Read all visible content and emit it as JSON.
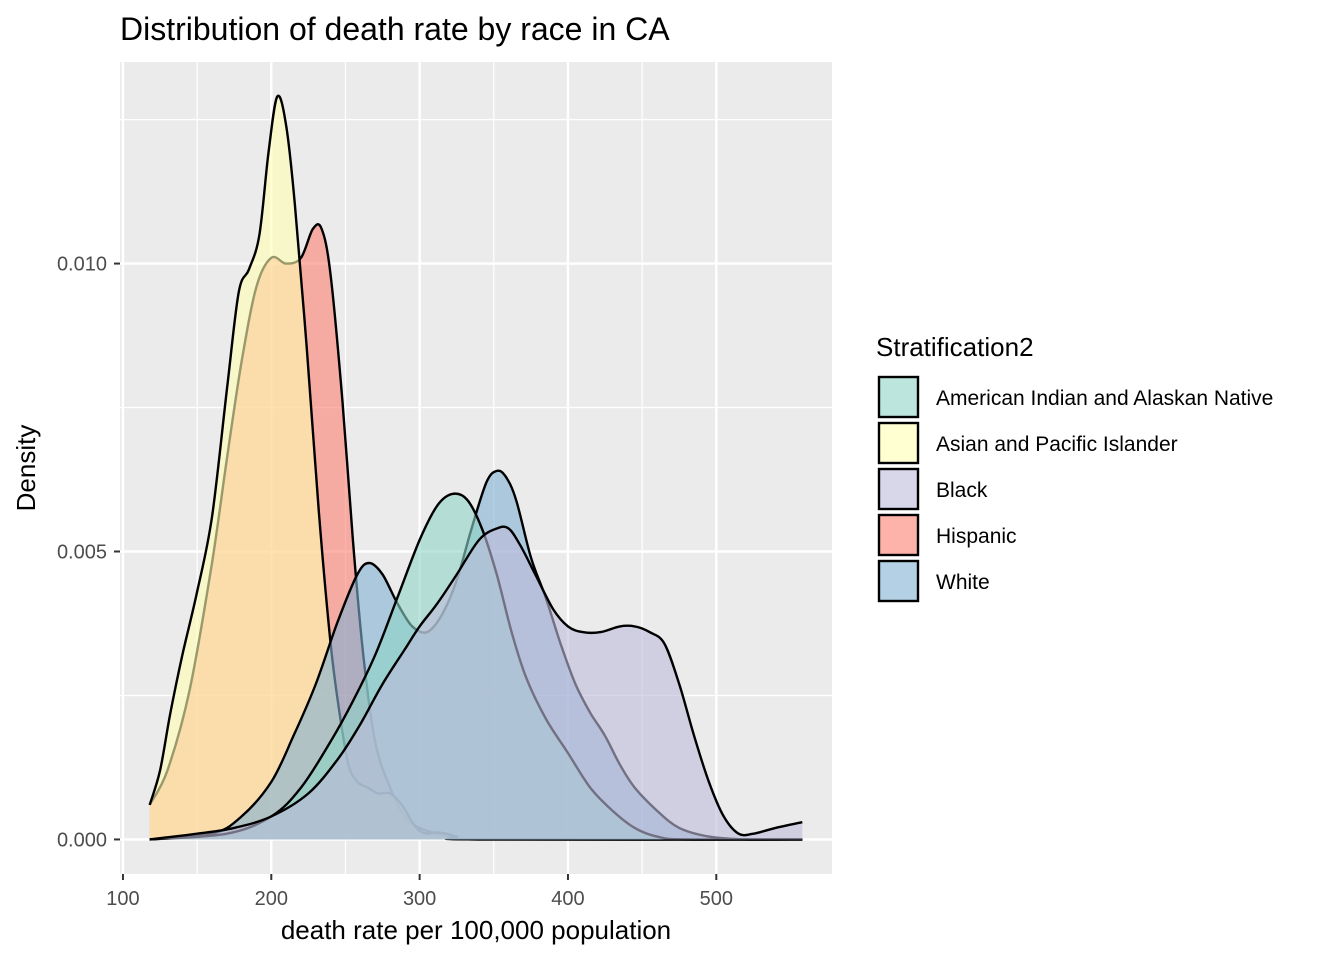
{
  "chart_data": {
    "type": "area",
    "subtype": "density",
    "title": "Distribution of death rate by race in CA",
    "xlabel": "death rate per 100,000 population",
    "ylabel": "Density",
    "xlim": [
      98,
      578
    ],
    "ylim": [
      -0.0006,
      0.0135
    ],
    "xticks": [
      100,
      200,
      300,
      400,
      500
    ],
    "xtick_labels": [
      "100",
      "200",
      "300",
      "400",
      "500"
    ],
    "yticks": [
      0.0,
      0.005,
      0.01
    ],
    "ytick_labels": [
      "0.000",
      "0.005",
      "0.010"
    ],
    "grid": true,
    "legend": {
      "title": "Stratification2",
      "position": "right"
    },
    "series": [
      {
        "name": "Hispanic",
        "color": "#FB8072",
        "points": [
          [
            118,
            0.0006
          ],
          [
            130,
            0.0012
          ],
          [
            145,
            0.0026
          ],
          [
            160,
            0.0048
          ],
          [
            170,
            0.0066
          ],
          [
            180,
            0.0083
          ],
          [
            190,
            0.0096
          ],
          [
            200,
            0.0101
          ],
          [
            210,
            0.01
          ],
          [
            220,
            0.0101
          ],
          [
            228,
            0.0106
          ],
          [
            234,
            0.0106
          ],
          [
            240,
            0.0098
          ],
          [
            248,
            0.0076
          ],
          [
            255,
            0.0052
          ],
          [
            262,
            0.0032
          ],
          [
            270,
            0.0017
          ],
          [
            280,
            0.0009
          ],
          [
            290,
            0.0004
          ],
          [
            300,
            0.0002
          ],
          [
            320,
            5e-05
          ],
          [
            340,
            0.0
          ],
          [
            558,
            0.0
          ]
        ]
      },
      {
        "name": "Asian and Pacific Islander",
        "color": "#FFFFB3",
        "points": [
          [
            118,
            0.0006
          ],
          [
            125,
            0.0012
          ],
          [
            132,
            0.0022
          ],
          [
            140,
            0.0032
          ],
          [
            150,
            0.0043
          ],
          [
            160,
            0.0056
          ],
          [
            170,
            0.0078
          ],
          [
            178,
            0.0095
          ],
          [
            185,
            0.0099
          ],
          [
            192,
            0.0105
          ],
          [
            198,
            0.0119
          ],
          [
            204,
            0.0129
          ],
          [
            210,
            0.0124
          ],
          [
            216,
            0.011
          ],
          [
            224,
            0.0085
          ],
          [
            232,
            0.0057
          ],
          [
            240,
            0.0034
          ],
          [
            246,
            0.0022
          ],
          [
            252,
            0.0013
          ],
          [
            258,
            0.001
          ],
          [
            265,
            0.0009
          ],
          [
            272,
            0.0008
          ],
          [
            280,
            0.0008
          ],
          [
            288,
            0.0006
          ],
          [
            295,
            0.0003
          ],
          [
            300,
            0.00015
          ],
          [
            305,
            0.0001
          ],
          [
            310,
            0.00012
          ],
          [
            318,
            0.0001
          ],
          [
            325,
            5e-05
          ],
          [
            340,
            0.0
          ],
          [
            558,
            0.0
          ]
        ]
      },
      {
        "name": "White",
        "color": "#80B1D3",
        "points": [
          [
            118,
            0.0
          ],
          [
            160,
            0.0001
          ],
          [
            180,
            0.0004
          ],
          [
            200,
            0.001
          ],
          [
            215,
            0.0018
          ],
          [
            230,
            0.0027
          ],
          [
            245,
            0.0038
          ],
          [
            258,
            0.0046
          ],
          [
            266,
            0.0048
          ],
          [
            275,
            0.0046
          ],
          [
            285,
            0.0041
          ],
          [
            295,
            0.0037
          ],
          [
            305,
            0.0036
          ],
          [
            315,
            0.0039
          ],
          [
            325,
            0.0045
          ],
          [
            335,
            0.0054
          ],
          [
            345,
            0.0062
          ],
          [
            352,
            0.0064
          ],
          [
            358,
            0.0063
          ],
          [
            365,
            0.0059
          ],
          [
            375,
            0.0049
          ],
          [
            385,
            0.0042
          ],
          [
            395,
            0.0034
          ],
          [
            405,
            0.0027
          ],
          [
            415,
            0.0022
          ],
          [
            425,
            0.0018
          ],
          [
            435,
            0.0013
          ],
          [
            445,
            0.0009
          ],
          [
            460,
            0.0005
          ],
          [
            475,
            0.0002
          ],
          [
            495,
            5e-05
          ],
          [
            520,
            0.0
          ],
          [
            558,
            0.0
          ]
        ]
      },
      {
        "name": "American Indian and Alaskan Native",
        "color": "#8DD3C7",
        "points": [
          [
            118,
            0.0
          ],
          [
            170,
            0.0001
          ],
          [
            200,
            0.0004
          ],
          [
            220,
            0.0009
          ],
          [
            240,
            0.0017
          ],
          [
            255,
            0.0024
          ],
          [
            270,
            0.0032
          ],
          [
            285,
            0.0042
          ],
          [
            300,
            0.0052
          ],
          [
            312,
            0.0058
          ],
          [
            322,
            0.006
          ],
          [
            332,
            0.0059
          ],
          [
            342,
            0.0054
          ],
          [
            352,
            0.0046
          ],
          [
            362,
            0.0036
          ],
          [
            372,
            0.0028
          ],
          [
            385,
            0.0021
          ],
          [
            400,
            0.0015
          ],
          [
            415,
            0.0009
          ],
          [
            430,
            0.0005
          ],
          [
            445,
            0.0002
          ],
          [
            460,
            5e-05
          ],
          [
            480,
            0.0
          ],
          [
            558,
            0.0
          ]
        ]
      },
      {
        "name": "Black",
        "color": "#BEBADA",
        "points": [
          [
            118,
            0.0
          ],
          [
            150,
            0.0001
          ],
          [
            175,
            0.0002
          ],
          [
            200,
            0.0004
          ],
          [
            225,
            0.0008
          ],
          [
            245,
            0.0014
          ],
          [
            260,
            0.002
          ],
          [
            275,
            0.0027
          ],
          [
            290,
            0.0033
          ],
          [
            300,
            0.0037
          ],
          [
            312,
            0.0041
          ],
          [
            325,
            0.0046
          ],
          [
            340,
            0.0052
          ],
          [
            352,
            0.0054
          ],
          [
            360,
            0.0054
          ],
          [
            368,
            0.0051
          ],
          [
            378,
            0.0046
          ],
          [
            390,
            0.004
          ],
          [
            400,
            0.0037
          ],
          [
            410,
            0.0036
          ],
          [
            422,
            0.0036
          ],
          [
            435,
            0.0037
          ],
          [
            445,
            0.0037
          ],
          [
            455,
            0.0036
          ],
          [
            465,
            0.0034
          ],
          [
            475,
            0.0027
          ],
          [
            485,
            0.0018
          ],
          [
            495,
            0.001
          ],
          [
            505,
            0.0004
          ],
          [
            515,
            0.0001
          ],
          [
            525,
            0.0001
          ],
          [
            540,
            0.0002
          ],
          [
            558,
            0.0003
          ]
        ]
      }
    ]
  }
}
